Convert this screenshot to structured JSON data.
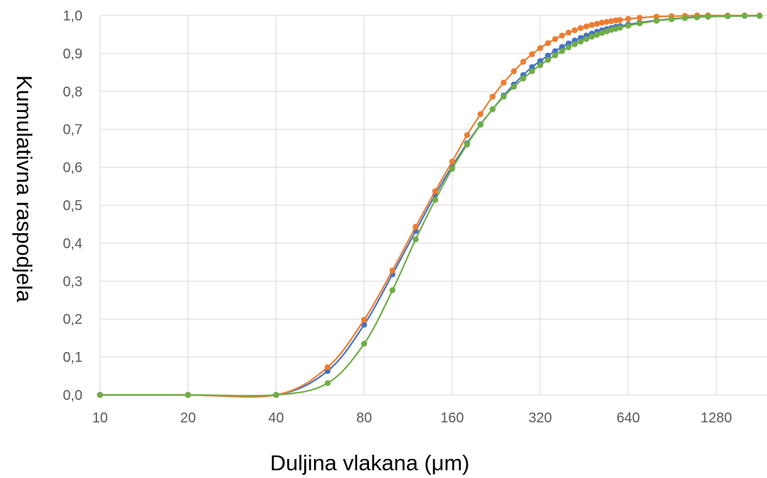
{
  "chart_data": {
    "type": "line",
    "xlabel": "Duljina vlakana (μm)",
    "ylabel": "Kumulativna raspodjela",
    "x_scale": "log2",
    "xlim": [
      10,
      2000
    ],
    "ylim": [
      0,
      1
    ],
    "grid": true,
    "x_ticks": [
      {
        "value": 10,
        "label": "10"
      },
      {
        "value": 20,
        "label": "20"
      },
      {
        "value": 40,
        "label": "40"
      },
      {
        "value": 80,
        "label": "80"
      },
      {
        "value": 160,
        "label": "160"
      },
      {
        "value": 320,
        "label": "320"
      },
      {
        "value": 640,
        "label": "640"
      },
      {
        "value": 1280,
        "label": "1280"
      }
    ],
    "y_ticks": [
      {
        "value": 0.0,
        "label": "0,0"
      },
      {
        "value": 0.1,
        "label": "0,1"
      },
      {
        "value": 0.2,
        "label": "0,2"
      },
      {
        "value": 0.3,
        "label": "0,3"
      },
      {
        "value": 0.4,
        "label": "0,4"
      },
      {
        "value": 0.5,
        "label": "0,5"
      },
      {
        "value": 0.6,
        "label": "0,6"
      },
      {
        "value": 0.7,
        "label": "0,7"
      },
      {
        "value": 0.8,
        "label": "0,8"
      },
      {
        "value": 0.9,
        "label": "0,9"
      },
      {
        "value": 1.0,
        "label": "1,0"
      }
    ],
    "x": [
      10,
      20,
      40,
      60,
      80,
      100,
      120,
      140,
      160,
      180,
      200,
      220,
      240,
      260,
      280,
      300,
      320,
      340,
      360,
      380,
      400,
      420,
      440,
      460,
      480,
      500,
      520,
      540,
      560,
      580,
      600,
      640,
      700,
      800,
      900,
      1000,
      1100,
      1200,
      1400,
      1600,
      1800,
      2000
    ],
    "series": [
      {
        "color": "#4472c4",
        "values": [
          0,
          0,
          0,
          0.063,
          0.185,
          0.318,
          0.432,
          0.527,
          0.603,
          0.663,
          0.713,
          0.753,
          0.789,
          0.818,
          0.843,
          0.864,
          0.88,
          0.894,
          0.906,
          0.917,
          0.926,
          0.934,
          0.941,
          0.947,
          0.952,
          0.957,
          0.961,
          0.964,
          0.967,
          0.97,
          0.972,
          0.976,
          0.981,
          0.987,
          0.991,
          0.994,
          0.996,
          0.997,
          0.998,
          0.999,
          0.999,
          1.0
        ]
      },
      {
        "color": "#ed7d31",
        "values": [
          0,
          0,
          0,
          0.073,
          0.198,
          0.328,
          0.443,
          0.537,
          0.615,
          0.685,
          0.74,
          0.786,
          0.823,
          0.853,
          0.878,
          0.898,
          0.914,
          0.927,
          0.938,
          0.947,
          0.955,
          0.961,
          0.967,
          0.971,
          0.975,
          0.978,
          0.981,
          0.983,
          0.985,
          0.987,
          0.988,
          0.991,
          0.994,
          0.997,
          0.998,
          0.999,
          1.0,
          1.0,
          1.0,
          1.0,
          1.0,
          1.0
        ]
      },
      {
        "color": "#70ad47",
        "values": [
          0,
          0,
          0,
          0.031,
          0.135,
          0.276,
          0.41,
          0.514,
          0.596,
          0.66,
          0.712,
          0.753,
          0.786,
          0.812,
          0.834,
          0.853,
          0.869,
          0.883,
          0.895,
          0.906,
          0.916,
          0.924,
          0.931,
          0.938,
          0.944,
          0.949,
          0.954,
          0.958,
          0.962,
          0.965,
          0.968,
          0.973,
          0.979,
          0.986,
          0.99,
          0.993,
          0.995,
          0.997,
          0.998,
          0.999,
          0.999,
          1.0
        ]
      }
    ]
  }
}
